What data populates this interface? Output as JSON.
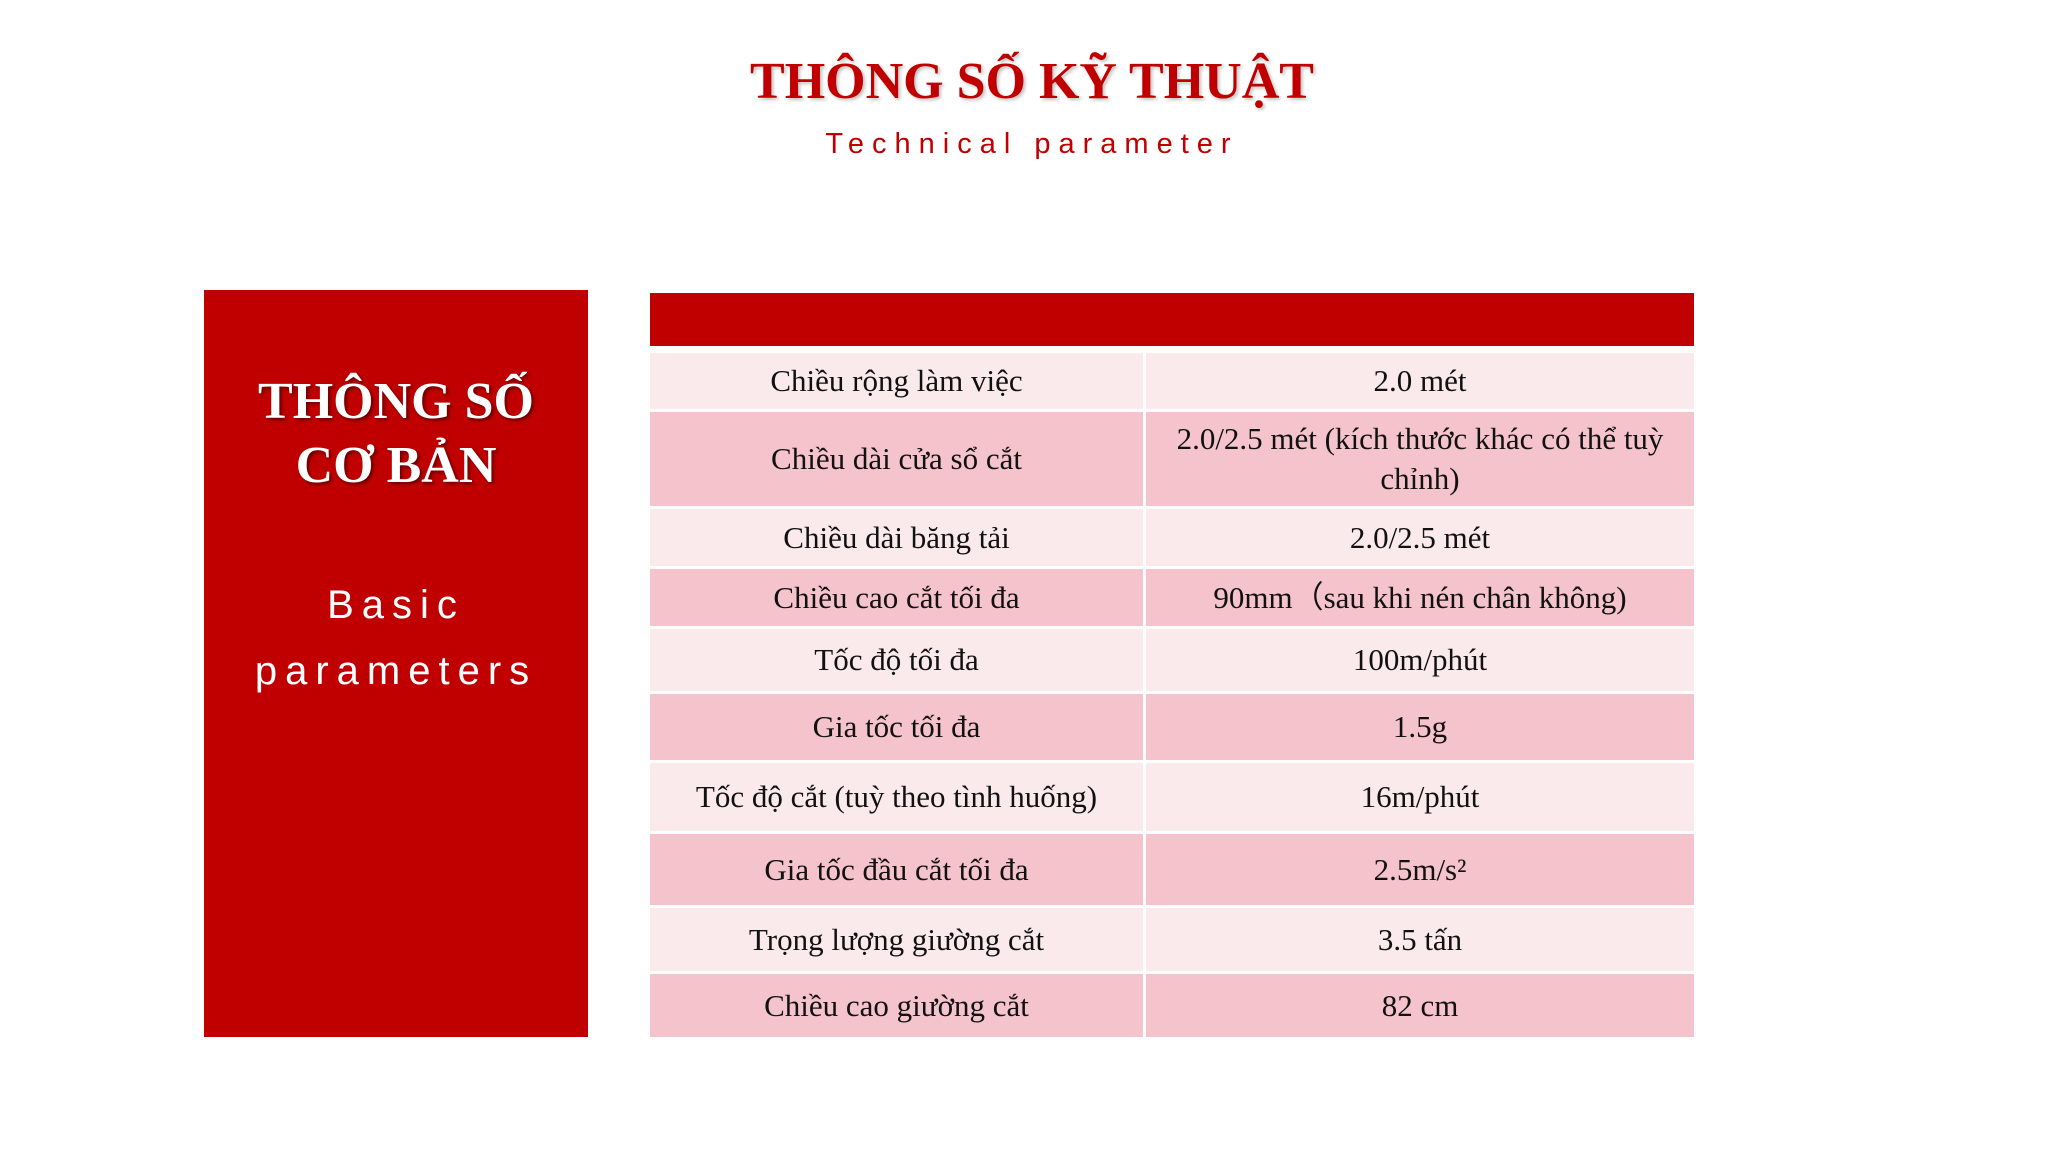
{
  "header": {
    "title": "THÔNG SỐ KỸ THUẬT",
    "subtitle": "Technical parameter"
  },
  "panel": {
    "title_line1": "THÔNG SỐ",
    "title_line2": "CƠ BẢN",
    "sub_line1": "Basic",
    "sub_line2": "parameters"
  },
  "colors": {
    "accent": "#c00000",
    "row_light": "#fbeaec",
    "row_dark": "#f4c3cb"
  },
  "table": {
    "rows": [
      {
        "label": "Chiều rộng làm việc",
        "value": "2.0 mét"
      },
      {
        "label": "Chiều dài cửa sổ cắt",
        "value": "2.0/2.5 mét (kích thước khác có thể tuỳ chỉnh)"
      },
      {
        "label": "Chiều dài băng tải",
        "value": "2.0/2.5 mét"
      },
      {
        "label": "Chiều cao cắt tối đa",
        "value": "90mm（sau khi nén chân không)"
      },
      {
        "label": "Tốc độ tối đa",
        "value": "100m/phút"
      },
      {
        "label": "Gia tốc tối đa",
        "value": "1.5g"
      },
      {
        "label": "Tốc độ cắt (tuỳ theo tình huống)",
        "value": "16m/phút"
      },
      {
        "label": "Gia tốc đầu cắt tối đa",
        "value": "2.5m/s²"
      },
      {
        "label": "Trọng lượng giường cắt",
        "value": "3.5 tấn"
      },
      {
        "label": "Chiều cao giường cắt",
        "value": "82 cm"
      }
    ]
  }
}
